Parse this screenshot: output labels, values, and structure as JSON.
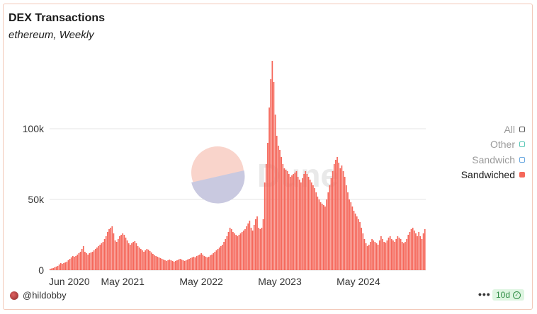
{
  "chart_data": {
    "type": "bar",
    "title": "DEX Transactions",
    "subtitle": "ethereum, Weekly",
    "xlabel": "",
    "ylabel": "",
    "ylim": [
      0,
      150000
    ],
    "yticks": [
      {
        "value": 0,
        "label": "0"
      },
      {
        "value": 50000,
        "label": "50k"
      },
      {
        "value": 100000,
        "label": "100k"
      }
    ],
    "xticks": [
      {
        "index": 0,
        "label": "Jun 2020"
      },
      {
        "index": 48,
        "label": "May 2021"
      },
      {
        "index": 100,
        "label": "May 2022"
      },
      {
        "index": 152,
        "label": "May 2023"
      },
      {
        "index": 204,
        "label": "May 2024"
      }
    ],
    "grid": true,
    "legend_position": "right",
    "series": [
      {
        "name": "Sandwiched",
        "color": "#f5675a",
        "values": [
          1000,
          1200,
          1500,
          2000,
          2500,
          3000,
          4000,
          5000,
          4500,
          5000,
          5500,
          6000,
          7000,
          8000,
          9000,
          10000,
          9500,
          10000,
          11000,
          12000,
          13000,
          15000,
          17000,
          13000,
          12000,
          11000,
          12000,
          12500,
          13000,
          14000,
          15000,
          16000,
          17000,
          18000,
          19000,
          20000,
          22000,
          24000,
          27000,
          29000,
          30000,
          31000,
          26000,
          21000,
          20000,
          22000,
          24000,
          25000,
          26000,
          25000,
          23000,
          21000,
          19000,
          18000,
          19000,
          20000,
          20500,
          19000,
          17000,
          16000,
          15000,
          14000,
          13000,
          14000,
          15000,
          14500,
          13500,
          12500,
          11500,
          10500,
          10000,
          9500,
          9000,
          8500,
          8000,
          7500,
          7000,
          6500,
          7000,
          7500,
          7000,
          6500,
          6000,
          6500,
          7000,
          7500,
          8000,
          7500,
          7000,
          6500,
          7000,
          7500,
          8000,
          8500,
          9000,
          9500,
          9000,
          10000,
          10500,
          11000,
          12000,
          11000,
          10000,
          9500,
          9000,
          9500,
          10500,
          11000,
          12000,
          13000,
          14000,
          15000,
          16000,
          17000,
          18000,
          20000,
          22000,
          24000,
          27000,
          30000,
          29000,
          27000,
          26000,
          25000,
          24000,
          25000,
          26000,
          27000,
          28000,
          29000,
          31000,
          33000,
          35000,
          30000,
          28000,
          32000,
          36000,
          38000,
          30000,
          29000,
          30000,
          36000,
          62000,
          75000,
          90000,
          115000,
          135000,
          148000,
          133000,
          110000,
          95000,
          88000,
          85000,
          80000,
          75000,
          72000,
          71000,
          70000,
          68000,
          66000,
          67000,
          68000,
          69000,
          70000,
          66000,
          64000,
          62000,
          65000,
          68000,
          70000,
          68000,
          66000,
          64000,
          62000,
          60000,
          58000,
          55000,
          52000,
          50000,
          48000,
          47000,
          46000,
          45000,
          50000,
          55000,
          60000,
          65000,
          70000,
          75000,
          78000,
          80000,
          76000,
          72000,
          74000,
          70000,
          66000,
          60000,
          55000,
          50000,
          48000,
          45000,
          42000,
          40000,
          38000,
          36000,
          34000,
          30000,
          26000,
          22000,
          19000,
          17000,
          18000,
          20000,
          22000,
          21000,
          20000,
          19000,
          18000,
          21000,
          24000,
          22000,
          20000,
          19500,
          21000,
          23000,
          24000,
          22000,
          21000,
          20000,
          22000,
          24000,
          23000,
          22000,
          20000,
          19000,
          20000,
          22000,
          25000,
          27000,
          29000,
          30000,
          28000,
          26000,
          24000,
          27000,
          24000,
          22000,
          26000,
          29000
        ]
      }
    ],
    "legend": [
      {
        "label": "All",
        "color": "#555555",
        "filled": false
      },
      {
        "label": "Other",
        "color": "#5cc8b8",
        "filled": false
      },
      {
        "label": "Sandwich",
        "color": "#6aa8e0",
        "filled": false
      },
      {
        "label": "Sandwiched",
        "color": "#f5675a",
        "filled": true
      }
    ]
  },
  "footer": {
    "user": "@hildobby",
    "more_label": "•••",
    "badge_label": "10d",
    "badge_check": "✓"
  },
  "watermark": "Dune"
}
